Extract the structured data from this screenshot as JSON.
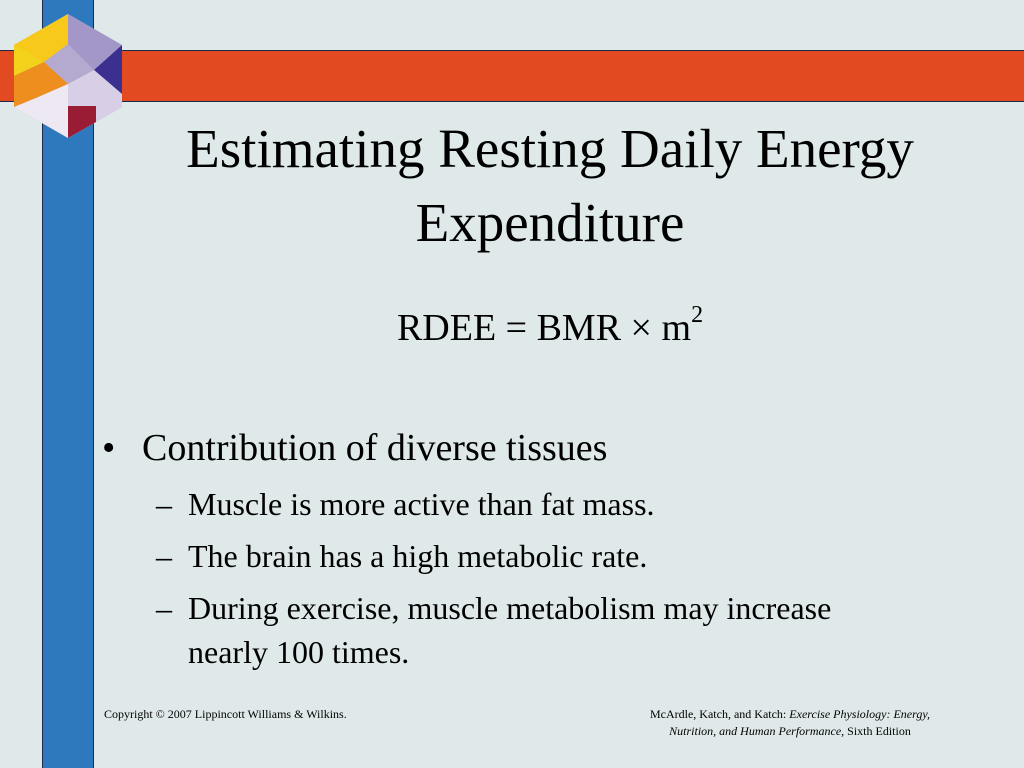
{
  "slide": {
    "title_line1": "Estimating Resting Daily Energy",
    "title_line2": "Expenditure",
    "formula": {
      "base": "RDEE = BMR × m",
      "superscript": "2"
    },
    "bullet": {
      "mark": "•",
      "text": "Contribution of diverse tissues"
    },
    "sub_items": [
      {
        "dash": "–",
        "text": "Muscle is more active than fat mass."
      },
      {
        "dash": "–",
        "text": "The brain has a high metabolic rate."
      },
      {
        "dash": "–",
        "text": "During exercise, muscle metabolism may increase",
        "continuation": "nearly 100 times."
      }
    ]
  },
  "footer": {
    "copyright": "Copyright © 2007 Lippincott Williams & Wilkins.",
    "citation_authors": "McArdle, Katch, and Katch: ",
    "citation_book_line1": "Exercise Physiology: Energy,",
    "citation_book_line2": "Nutrition, and Human Performance,",
    "citation_edition": " Sixth Edition"
  },
  "colors": {
    "background": "#dfe9e9",
    "band_orange": "#e24a22",
    "bar_blue": "#2e78bd"
  },
  "icons": {
    "logo": "colored-cube-icon"
  }
}
